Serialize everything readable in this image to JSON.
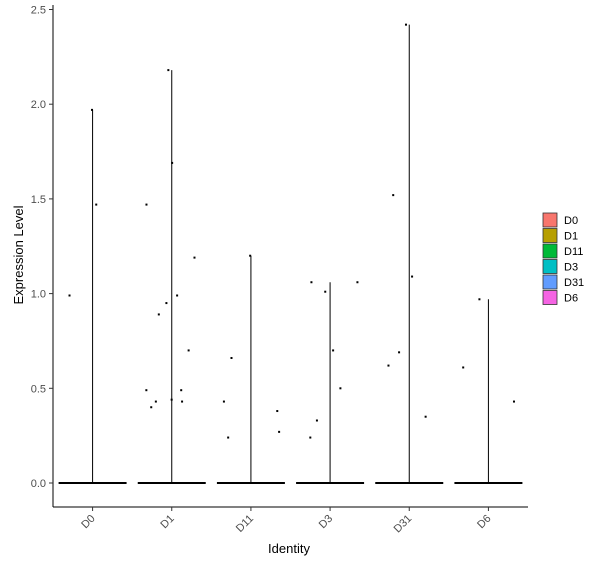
{
  "chart_data": {
    "type": "violin",
    "title": "",
    "xlabel": "Identity",
    "ylabel": "Expression Level",
    "ylim": [
      -0.12,
      2.55
    ],
    "yticks": [
      "0.0",
      "0.5",
      "1.0",
      "1.5",
      "2.0",
      "2.5"
    ],
    "categories": [
      "D0",
      "D1",
      "D11",
      "D3",
      "D31",
      "D6"
    ],
    "legend_position": "right",
    "grid": false,
    "series": [
      {
        "name": "D0",
        "color": "#F8766D",
        "max": 1.97,
        "points": [
          1.97,
          1.47,
          0.99,
          0.0
        ]
      },
      {
        "name": "D1",
        "color": "#B79F00",
        "max": 2.18,
        "points": [
          2.18,
          1.69,
          1.47,
          1.19,
          0.99,
          0.95,
          0.89,
          0.7,
          0.49,
          0.49,
          0.44,
          0.43,
          0.43,
          0.4,
          0.0
        ]
      },
      {
        "name": "D11",
        "color": "#00BA38",
        "max": 1.2,
        "points": [
          1.2,
          0.66,
          0.43,
          0.38,
          0.27,
          0.24,
          0.0
        ]
      },
      {
        "name": "D3",
        "color": "#00BFC4",
        "max": 1.06,
        "points": [
          1.06,
          1.06,
          1.01,
          0.7,
          0.5,
          0.33,
          0.24,
          0.0
        ]
      },
      {
        "name": "D31",
        "color": "#619CFF",
        "max": 2.42,
        "points": [
          2.42,
          1.52,
          1.09,
          0.69,
          0.62,
          0.35,
          0.0
        ]
      },
      {
        "name": "D6",
        "color": "#F564E3",
        "max": 0.97,
        "points": [
          0.97,
          0.61,
          0.43,
          0.0
        ]
      }
    ]
  }
}
